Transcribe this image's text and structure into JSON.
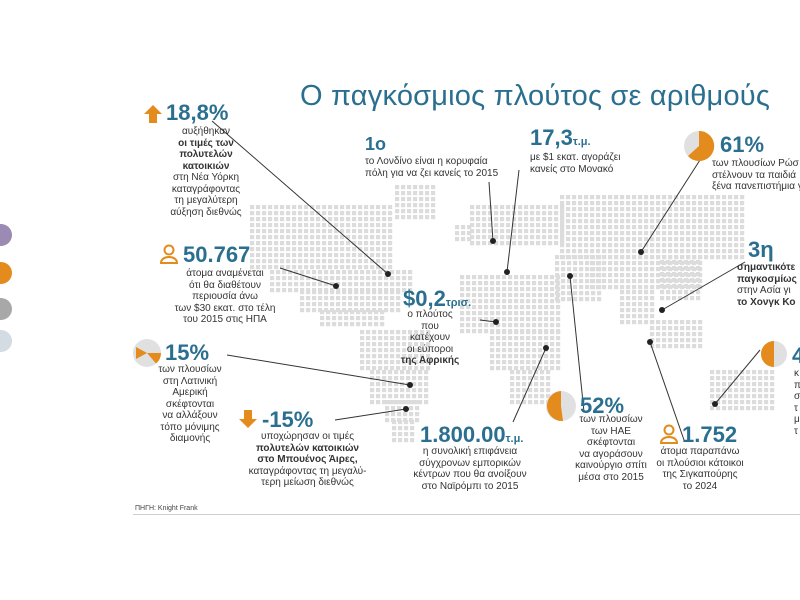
{
  "title": "Ο παγκόσμιος πλούτος σε αριθμούς",
  "source": "ΠΗΓΗ: Knight Frank",
  "colors": {
    "accent": "#2a6f8f",
    "orange": "#e38b1c",
    "dots": "#dcdcdc"
  },
  "side_dots": [
    "#9b8ab3",
    "#e38b1c",
    "#a8a8a8",
    "#d3dbe3"
  ],
  "icons": {
    "up": "arrow-up-icon",
    "down": "arrow-down-icon",
    "person": "person-icon",
    "pie": "pie-icon"
  },
  "ny": {
    "value": "18,8%",
    "lines": [
      "αυξήθηκαν",
      "οι τιμές των",
      "πολυτελών",
      "κατοικιών",
      "στη Νέα Υόρκη",
      "καταγράφοντας",
      "τη μεγαλύτερη",
      "αύξηση διεθνώς"
    ]
  },
  "usa": {
    "value": "50.767",
    "lines": [
      "άτομα αναμένεται",
      "ότι θα διαθέτουν",
      "περιουσία άνω",
      "των $30 εκατ. στο τέλη",
      "του 2015 στις ΗΠΑ"
    ]
  },
  "latam": {
    "value": "15%",
    "lines": [
      "των πλουσίων",
      "στη Λατινική",
      "Αμερική",
      "σκέφτονται",
      "να αλλάξουν",
      "τόπο μόνιμης",
      "διαμονής"
    ]
  },
  "buenos": {
    "value": "-15%",
    "lines": [
      "υποχώρησαν οι τιμές",
      "πολυτελών κατοικιών",
      "στο Μπουένος Άιρες,",
      "καταγράφοντας τη μεγαλύ-",
      "τερη μείωση διεθνώς"
    ]
  },
  "london": {
    "value": "1ο",
    "lines": [
      "το Λονδίνο είναι η κορυφαία",
      "πόλη για να ζει κανείς το 2015"
    ]
  },
  "monaco": {
    "value": "17,3",
    "unit": "τ.μ.",
    "lines": [
      "με $1 εκατ. αγοράζει",
      "κανείς στο Μονακό"
    ]
  },
  "africa": {
    "value": "$0,2",
    "unit": "τρισ.",
    "lines": [
      "ο πλούτος",
      "που κατέχουν",
      "οι εύποροι",
      "της Αφρικής"
    ]
  },
  "nairobi": {
    "value": "1.800.00",
    "unit": "τ.μ.",
    "lines": [
      "η συνολική επιφάνεια",
      "σύγχρονων εμπορικών",
      "κέντρων που θα ανοίξουν",
      "στο Ναϊρόμπι το 2015"
    ]
  },
  "uae": {
    "value": "52%",
    "lines": [
      "των πλουσίων",
      "των ΗΑΕ",
      "σκέφτονται",
      "να αγοράσουν",
      "καινούργιο σπίτι",
      "μέσα στο 2015"
    ]
  },
  "russia": {
    "value": "61%",
    "lines": [
      "των πλουσίων Ρώσ",
      "στέλνουν τα παιδιά",
      "ξένα πανεπιστήμια γ"
    ]
  },
  "hk": {
    "value": "3η",
    "lines": [
      "σημαντικότε",
      "παγκοσμίως",
      "στην Ασία γι",
      "το Χονγκ Κο"
    ]
  },
  "singapore": {
    "value": "1.752",
    "lines": [
      "άτομα παραπάνω",
      "οι πλούσιοι κάτοικοι",
      "της Σιγκαπούρης",
      "το 2024"
    ]
  },
  "oceania": {
    "value": "4",
    "lines": [
      "κ",
      "π",
      "σ",
      "τ",
      "μ",
      "τ"
    ]
  }
}
